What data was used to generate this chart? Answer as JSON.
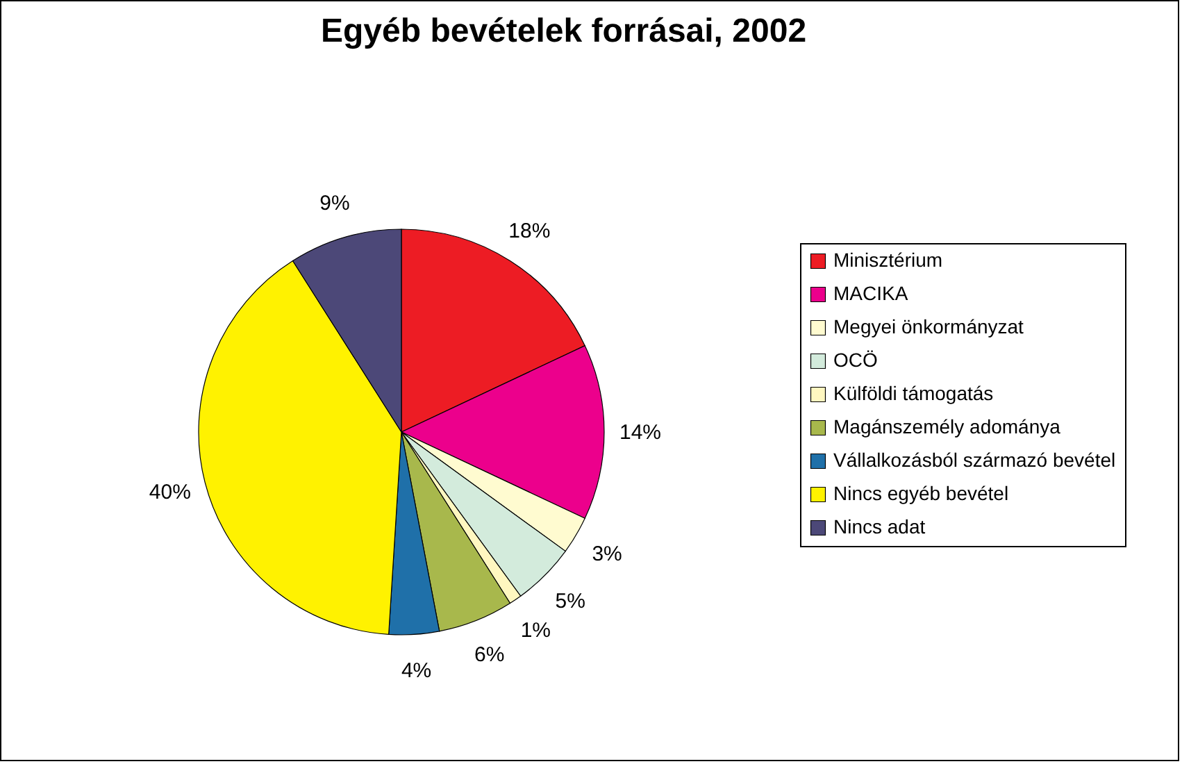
{
  "chart_data": {
    "type": "pie",
    "title": "Egyéb bevételek forrásai, 2002",
    "categories": [
      "Minisztérium",
      "MACIKA",
      "Megyei önkormányzat",
      "OCÖ",
      "Külföldi támogatás",
      "Magánszemély adománya",
      "Vállalkozásból származó bevétel",
      "Nincs egyéb bevétel",
      "Nincs adat"
    ],
    "values": [
      18,
      14,
      3,
      5,
      1,
      6,
      4,
      40,
      9
    ],
    "value_labels": [
      "18%",
      "14%",
      "3%",
      "5%",
      "1%",
      "6%",
      "4%",
      "40%",
      "9%"
    ],
    "colors": [
      "#ed1c24",
      "#ec008c",
      "#fffbd0",
      "#d3ebdc",
      "#fff7c0",
      "#a8b84c",
      "#1f70a9",
      "#fff200",
      "#4c4878"
    ],
    "legend": "right"
  }
}
